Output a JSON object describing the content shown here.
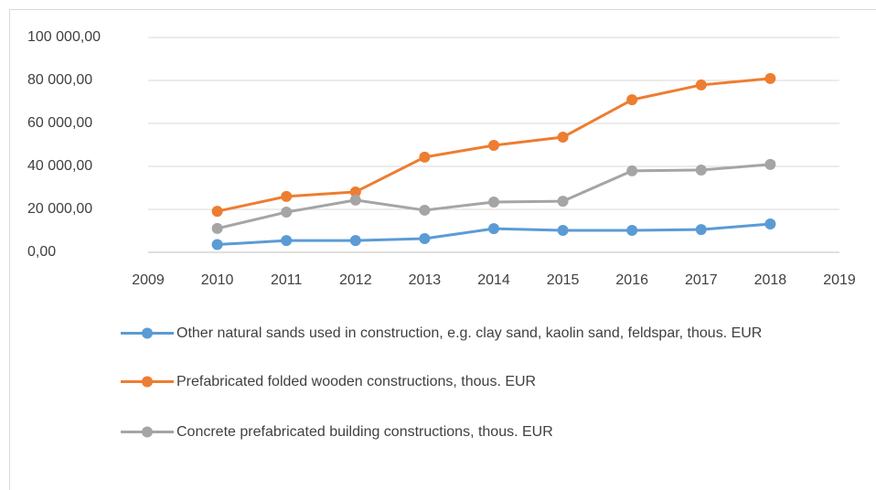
{
  "chart_data": {
    "type": "line",
    "x": [
      2010,
      2011,
      2012,
      2013,
      2014,
      2015,
      2016,
      2017,
      2018
    ],
    "xlim": [
      2009,
      2019
    ],
    "xticks": [
      2009,
      2010,
      2011,
      2012,
      2013,
      2014,
      2015,
      2016,
      2017,
      2018,
      2019
    ],
    "ylim": [
      0,
      100000
    ],
    "yticks": [
      {
        "value": 0,
        "label": "0,00"
      },
      {
        "value": 20000,
        "label": "20 000,00"
      },
      {
        "value": 40000,
        "label": "40 000,00"
      },
      {
        "value": 60000,
        "label": "60 000,00"
      },
      {
        "value": 80000,
        "label": "80 000,00"
      },
      {
        "value": 100000,
        "label": "100 000,00"
      }
    ],
    "grid": true,
    "legend": "bottom",
    "series": [
      {
        "name": "Other natural sands used in construction, e.g. clay sand, kaolin sand, feldspar, thous. EUR",
        "color": "#5b9bd5",
        "values": [
          3600,
          5500,
          5500,
          6400,
          11000,
          10200,
          10200,
          10600,
          13200
        ]
      },
      {
        "name": "Prefabricated folded wooden constructions, thous. EUR",
        "color": "#ed7d31",
        "values": [
          19100,
          26000,
          28100,
          44300,
          49800,
          53600,
          71000,
          77900,
          80900
        ]
      },
      {
        "name": "Concrete prefabricated building constructions, thous. EUR",
        "color": "#a5a5a5",
        "values": [
          11100,
          18700,
          24300,
          19600,
          23400,
          23800,
          37900,
          38300,
          40900
        ]
      }
    ]
  }
}
